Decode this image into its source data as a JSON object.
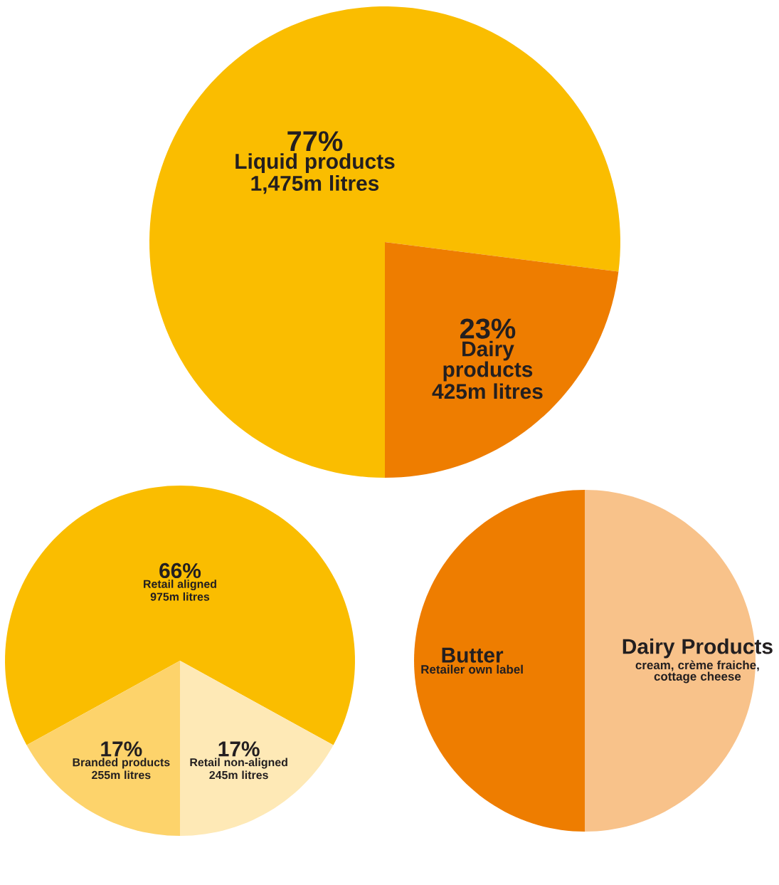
{
  "chart_data": [
    {
      "type": "pie",
      "categories": [
        "Liquid products",
        "Dairy products"
      ],
      "values": [
        77,
        23
      ],
      "value_labels": [
        "77%",
        "23%"
      ],
      "colors": [
        "#fabd00",
        "#ee7d00"
      ],
      "annotations": [
        "1,475m litres",
        "425m litres"
      ]
    },
    {
      "type": "pie",
      "categories": [
        "Retail aligned",
        "Branded products",
        "Retail non-aligned"
      ],
      "values": [
        66,
        17,
        17
      ],
      "value_labels": [
        "66%",
        "17%",
        "17%"
      ],
      "colors": [
        "#fabd00",
        "#fdd36b",
        "#fee9b6"
      ],
      "annotations": [
        "975m litres",
        "255m litres",
        "245m litres"
      ]
    },
    {
      "type": "pie",
      "categories": [
        "Butter",
        "Dairy Products"
      ],
      "values": [
        50,
        50
      ],
      "colors": [
        "#ee7d00",
        "#f8c28a"
      ],
      "annotations": [
        "Retailer own label",
        "cream, crème fraiche, cottage cheese"
      ]
    }
  ]
}
